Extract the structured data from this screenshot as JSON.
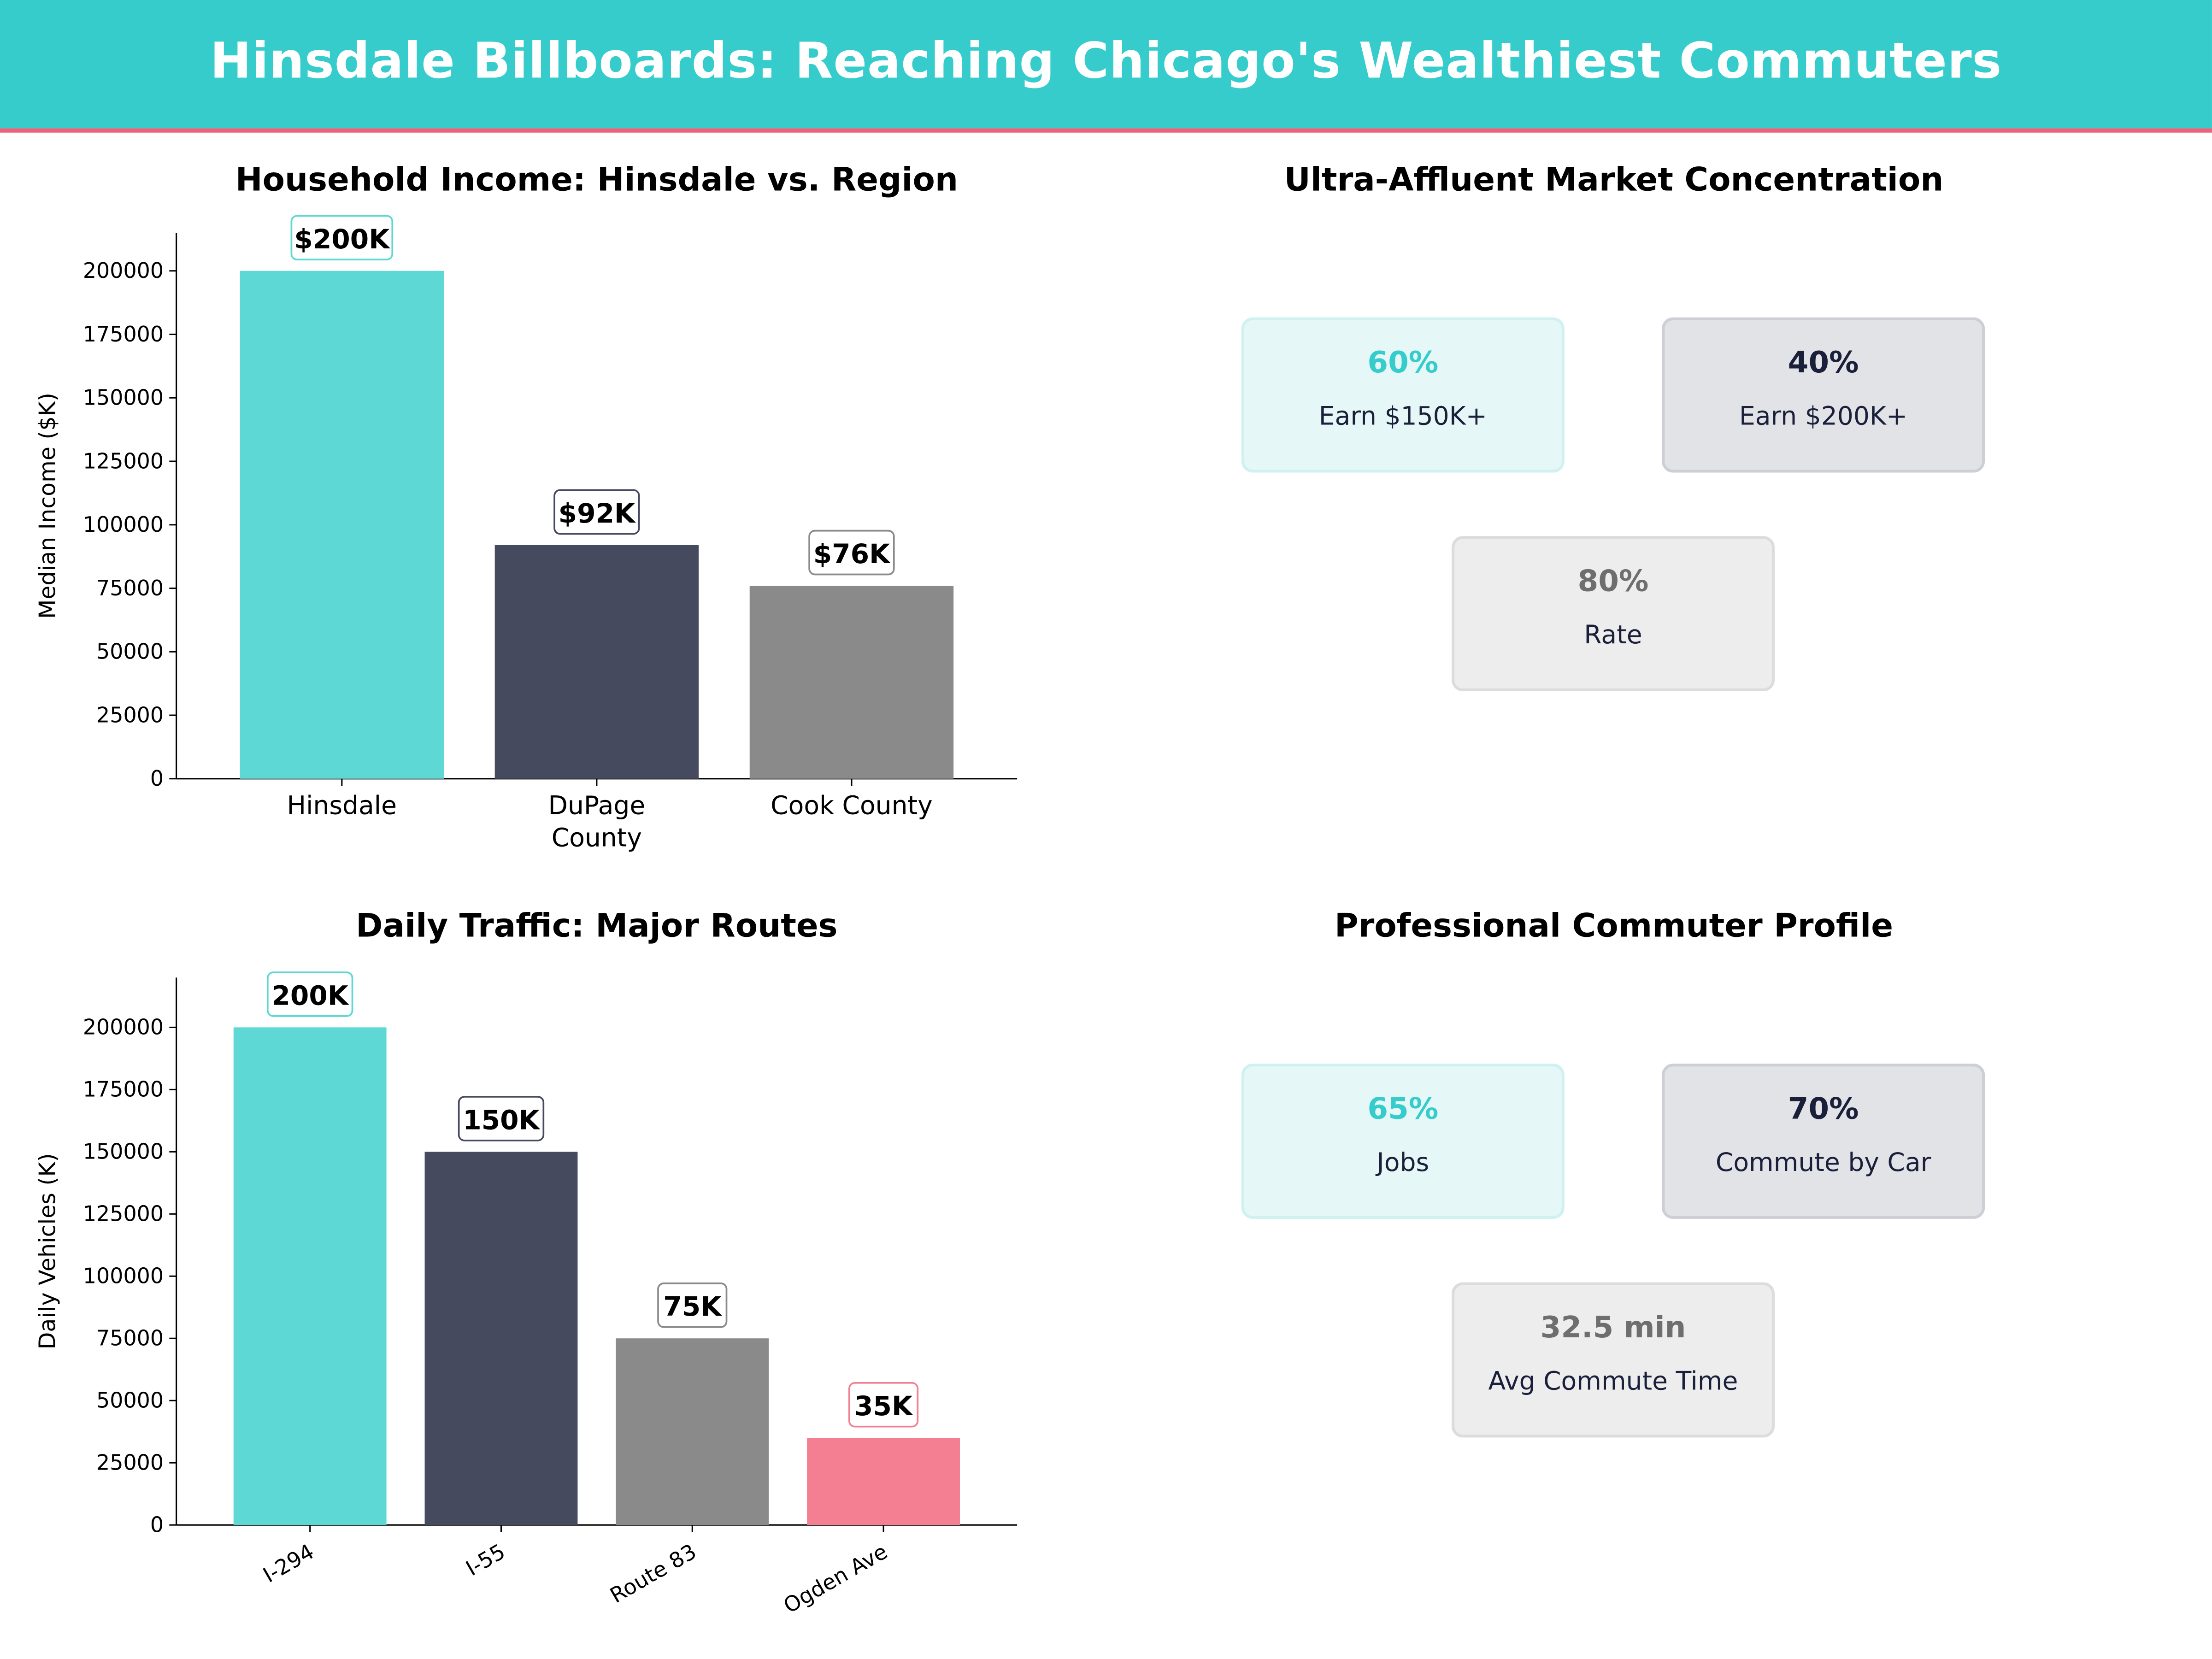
{
  "header": {
    "title": "Hinsdale Billboards: Reaching Chicago's Wealthiest Commuters"
  },
  "colors": {
    "teal": "#5ED8D4",
    "navy": "#464A5F",
    "gray": "#8A8A8A",
    "pink": "#F47E92",
    "header": "#36CCCC",
    "accent_line": "#F0627A"
  },
  "chart_data": [
    {
      "type": "bar",
      "title": "Household Income: Hinsdale vs. Region",
      "xlabel": "",
      "ylabel": "Median Income ($K)",
      "categories": [
        "Hinsdale",
        "DuPage County",
        "Cook County"
      ],
      "values": [
        200000,
        92000,
        76000
      ],
      "data_labels": [
        "$200K",
        "$92K",
        "$76K"
      ],
      "bar_colors": [
        "#5ED8D4",
        "#464A5F",
        "#8A8A8A"
      ],
      "ylim": [
        0,
        215000
      ],
      "yticks": [
        0,
        25000,
        50000,
        75000,
        100000,
        125000,
        150000,
        175000,
        200000
      ],
      "grid": false
    },
    {
      "type": "bar",
      "title": "Daily Traffic: Major Routes",
      "xlabel": "",
      "ylabel": "Daily Vehicles (K)",
      "categories": [
        "I-294",
        "I-55",
        "Route 83",
        "Ogden Ave"
      ],
      "values": [
        200000,
        150000,
        75000,
        35000
      ],
      "data_labels": [
        "200K",
        "150K",
        "75K",
        "35K"
      ],
      "bar_colors": [
        "#5ED8D4",
        "#464A5F",
        "#8A8A8A",
        "#F47E92"
      ],
      "ylim": [
        0,
        220000
      ],
      "yticks": [
        0,
        25000,
        50000,
        75000,
        100000,
        125000,
        150000,
        175000,
        200000
      ],
      "grid": false
    }
  ],
  "market": {
    "title": "Ultra-Affluent Market Concentration",
    "cards": [
      {
        "value": "60%",
        "label": "Earn $150K+"
      },
      {
        "value": "40%",
        "label": "Earn $200K+"
      },
      {
        "value": "80%",
        "label": "Rate"
      }
    ]
  },
  "commuter": {
    "title": "Professional Commuter Profile",
    "cards": [
      {
        "value": "65%",
        "label": "Jobs"
      },
      {
        "value": "70%",
        "label": "Commute by Car"
      },
      {
        "value": "32.5 min",
        "label": "Avg Commute Time"
      }
    ]
  }
}
